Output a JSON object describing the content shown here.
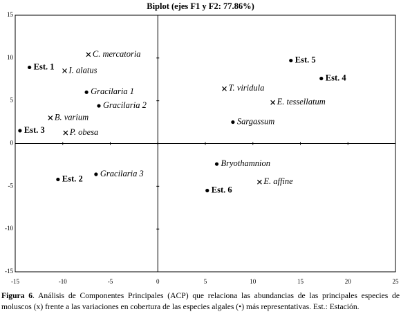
{
  "chart_data": {
    "type": "scatter",
    "title": "Biplot (ejes F1 y F2: 77.86%)",
    "xlim": [
      -15,
      25
    ],
    "xticks": [
      -15,
      -10,
      -5,
      0,
      5,
      10,
      15,
      20,
      25
    ],
    "ylim": [
      -15,
      15
    ],
    "yticks": [
      -15,
      -10,
      -5,
      0,
      5,
      10,
      15
    ],
    "color": "#000000",
    "points": [
      {
        "label": "Est. 1",
        "x": -13.5,
        "y": 8.9,
        "marker": "dot",
        "bold": true
      },
      {
        "label": "Est. 3",
        "x": -14.5,
        "y": 1.5,
        "marker": "dot",
        "bold": true
      },
      {
        "label": "Est. 2",
        "x": -10.5,
        "y": -4.2,
        "marker": "dot",
        "bold": true
      },
      {
        "label": "Est. 5",
        "x": 14.0,
        "y": 9.7,
        "marker": "dot",
        "bold": true
      },
      {
        "label": "Est. 4",
        "x": 17.2,
        "y": 7.6,
        "marker": "dot",
        "bold": true
      },
      {
        "label": "Est. 6",
        "x": 5.2,
        "y": -5.5,
        "marker": "dot",
        "bold": true
      },
      {
        "label": "Gracilaria 1",
        "x": -7.5,
        "y": 6.0,
        "marker": "dot",
        "bold": false
      },
      {
        "label": "Gracilaria 2",
        "x": -6.2,
        "y": 4.4,
        "marker": "dot",
        "bold": false
      },
      {
        "label": "Gracilaria 3",
        "x": -6.5,
        "y": -3.6,
        "marker": "dot",
        "bold": false
      },
      {
        "label": "Sargassum",
        "x": 7.9,
        "y": 2.5,
        "marker": "dot",
        "bold": false
      },
      {
        "label": "Bryothamnion",
        "x": 6.2,
        "y": -2.4,
        "marker": "dot",
        "bold": false
      },
      {
        "label": "C. mercatoria",
        "x": -7.3,
        "y": 10.4,
        "marker": "cross",
        "bold": false
      },
      {
        "label": "I. alatus",
        "x": -9.8,
        "y": 8.5,
        "marker": "cross",
        "bold": false
      },
      {
        "label": "B. varium",
        "x": -11.3,
        "y": 3.0,
        "marker": "cross",
        "bold": false
      },
      {
        "label": "P. obesa",
        "x": -9.7,
        "y": 1.25,
        "marker": "cross",
        "bold": false
      },
      {
        "label": "T. viridula",
        "x": 7.0,
        "y": 6.4,
        "marker": "cross",
        "bold": false
      },
      {
        "label": "E. tessellatum",
        "x": 12.1,
        "y": 4.8,
        "marker": "cross",
        "bold": false
      },
      {
        "label": "E. affine",
        "x": 10.7,
        "y": -4.5,
        "marker": "cross",
        "bold": false
      }
    ]
  },
  "caption_label": "Figura 6",
  "caption_text": ". Análisis de Componentes Principales (ACP) que relaciona las abundancias de las principales especies de moluscos (x) frente a las variaciones en cobertura de las especies algales (•) más representativas. Est.: Estación."
}
